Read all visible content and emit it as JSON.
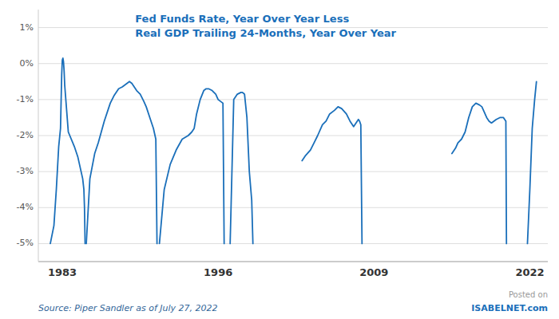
{
  "chart_data": {
    "type": "line",
    "title": "Fed Funds Rate, Year Over Year Less",
    "subtitle": "Real GDP Trailing 24-Months, Year Over Year",
    "annotations": [
      "Source: Piper Sandler as of July 27, 2022",
      "Posted on",
      "ISABELNET.com"
    ],
    "color": "#1a6fba",
    "grid": true,
    "xlim": [
      1981.0,
      2023.5
    ],
    "ylim": [
      -5.5,
      1.5
    ],
    "xticks": [
      1983,
      1996,
      2009,
      2022
    ],
    "yticks": [
      {
        "value": 1,
        "label": "1%"
      },
      {
        "value": 0,
        "label": "0%"
      },
      {
        "value": -1,
        "label": "-1%"
      },
      {
        "value": -2,
        "label": "-2%"
      },
      {
        "value": -3,
        "label": "-3%"
      },
      {
        "value": -4,
        "label": "-4%"
      },
      {
        "value": -5,
        "label": "-5%"
      }
    ],
    "series": [
      {
        "x": [
          1982.0,
          1982.3,
          1982.5,
          1982.7,
          1982.85,
          1982.95,
          1983.0,
          1983.05,
          1983.1,
          1983.15,
          1983.2,
          1983.5,
          1984.0,
          1984.3,
          1984.5,
          1984.7,
          1984.8,
          1984.85,
          1984.9
        ],
        "values": [
          -5.0,
          -4.5,
          -3.5,
          -2.3,
          -1.8,
          -0.3,
          0.1,
          0.15,
          0.05,
          -0.2,
          -0.6,
          -1.9,
          -2.3,
          -2.6,
          -2.9,
          -3.2,
          -3.5,
          -4.0,
          -5.0
        ]
      },
      {
        "x": [
          1985.0,
          1985.3,
          1985.7,
          1986.0,
          1986.5,
          1987.0,
          1987.3,
          1987.7,
          1988.0,
          1988.2,
          1988.4,
          1988.6,
          1988.8,
          1989.0,
          1989.2,
          1989.5,
          1989.8,
          1990.0,
          1990.3,
          1990.6,
          1990.8,
          1990.9
        ],
        "values": [
          -5.0,
          -3.2,
          -2.5,
          -2.2,
          -1.6,
          -1.1,
          -0.9,
          -0.7,
          -0.65,
          -0.6,
          -0.55,
          -0.5,
          -0.55,
          -0.65,
          -0.75,
          -0.85,
          -1.05,
          -1.2,
          -1.5,
          -1.8,
          -2.1,
          -5.0
        ]
      },
      {
        "x": [
          1991.1,
          1991.5,
          1992.0,
          1992.5,
          1993.0,
          1993.5,
          1993.8,
          1994.0,
          1994.2,
          1994.5,
          1994.8,
          1995.0,
          1995.2,
          1995.5,
          1995.8,
          1996.0,
          1996.2,
          1996.4,
          1996.5
        ],
        "values": [
          -5.0,
          -3.5,
          -2.8,
          -2.4,
          -2.1,
          -2.0,
          -1.9,
          -1.8,
          -1.4,
          -1.0,
          -0.75,
          -0.7,
          -0.7,
          -0.75,
          -0.85,
          -1.0,
          -1.05,
          -1.1,
          -5.0
        ]
      },
      {
        "x": [
          1997.0,
          1997.3,
          1997.6,
          1997.9,
          1998.0,
          1998.1,
          1998.2,
          1998.4,
          1998.6,
          1998.8,
          1998.9
        ],
        "values": [
          -5.0,
          -1.0,
          -0.85,
          -0.8,
          -0.8,
          -0.82,
          -0.85,
          -1.5,
          -3.0,
          -3.8,
          -5.0
        ]
      },
      {
        "x": [
          2003.0,
          2003.3,
          2003.7,
          2004.0,
          2004.3,
          2004.7,
          2005.0,
          2005.3,
          2005.7,
          2006.0,
          2006.3,
          2006.7,
          2007.0,
          2007.2,
          2007.3,
          2007.4,
          2007.5,
          2007.6,
          2007.7,
          2007.8,
          2007.9,
          2008.0
        ],
        "values": [
          -2.7,
          -2.55,
          -2.4,
          -2.2,
          -2.0,
          -1.7,
          -1.6,
          -1.4,
          -1.3,
          -1.2,
          -1.25,
          -1.4,
          -1.6,
          -1.7,
          -1.75,
          -1.7,
          -1.65,
          -1.6,
          -1.55,
          -1.6,
          -1.7,
          -5.0
        ]
      },
      {
        "x": [
          2015.5,
          2015.8,
          2016.0,
          2016.3,
          2016.6,
          2016.9,
          2017.2,
          2017.5,
          2017.8,
          2018.0,
          2018.2,
          2018.4,
          2018.6,
          2018.8,
          2019.0,
          2019.2,
          2019.5,
          2019.8,
          2020.0,
          2020.05
        ],
        "values": [
          -2.5,
          -2.35,
          -2.2,
          -2.1,
          -1.9,
          -1.5,
          -1.2,
          -1.1,
          -1.15,
          -1.2,
          -1.35,
          -1.5,
          -1.6,
          -1.65,
          -1.6,
          -1.55,
          -1.5,
          -1.5,
          -1.6,
          -5.0
        ]
      },
      {
        "x": [
          2021.8,
          2022.0,
          2022.2,
          2022.4,
          2022.55
        ],
        "values": [
          -5.0,
          -3.5,
          -1.8,
          -1.0,
          -0.5
        ]
      }
    ]
  }
}
